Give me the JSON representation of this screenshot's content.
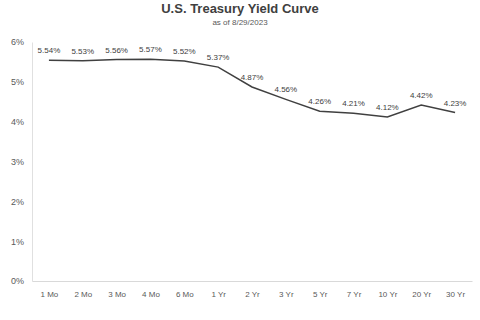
{
  "chart_data": {
    "type": "line",
    "title": "U.S. Treasury Yield Curve",
    "subtitle": "as of 8/29/2023",
    "categories": [
      "1 Mo",
      "2 Mo",
      "3 Mo",
      "4 Mo",
      "6 Mo",
      "1 Yr",
      "2 Yr",
      "3 Yr",
      "5 Yr",
      "7 Yr",
      "10 Yr",
      "20 Yr",
      "30 Yr"
    ],
    "values": [
      5.54,
      5.53,
      5.56,
      5.57,
      5.52,
      5.37,
      4.87,
      4.56,
      4.26,
      4.21,
      4.12,
      4.42,
      4.23
    ],
    "value_labels": [
      "5.54%",
      "5.53%",
      "5.56%",
      "5.57%",
      "5.52%",
      "5.37%",
      "4.87%",
      "4.56%",
      "4.26%",
      "4.21%",
      "4.12%",
      "4.42%",
      "4.23%"
    ],
    "color": "#404040",
    "ylim": [
      0,
      6
    ],
    "yticks": [
      {
        "value": 0,
        "label": "0%"
      },
      {
        "value": 1,
        "label": "1%"
      },
      {
        "value": 2,
        "label": "2%"
      },
      {
        "value": 3,
        "label": "3%"
      },
      {
        "value": 4,
        "label": "4%"
      },
      {
        "value": 5,
        "label": "5%"
      },
      {
        "value": 6,
        "label": "6%"
      }
    ],
    "grid": false,
    "data_labels": true
  }
}
